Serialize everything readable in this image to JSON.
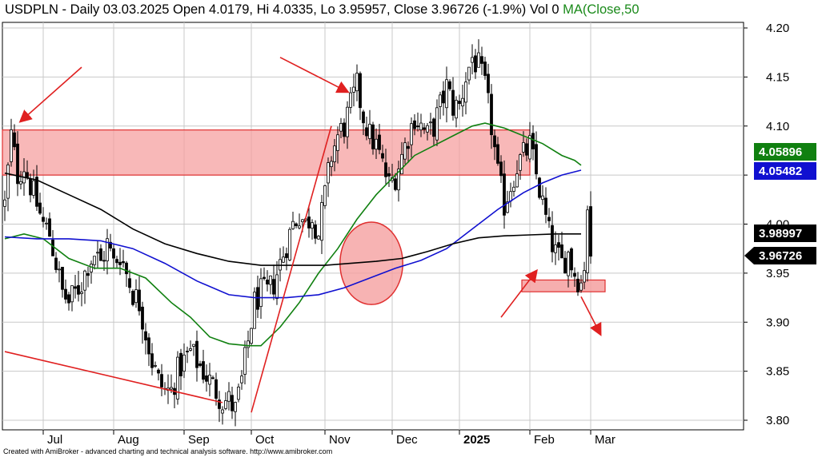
{
  "header": {
    "title": "USDPLN - Daily 03.03.2025 Open 4.0179, Hi 4.0335, Lo 3.95957, Close 3.96726 (-1.9%) Vol 0",
    "ma_label": "MA(Close,50"
  },
  "footer": "Created with AmiBroker - advanced charting and technical analysis software. http://www.amibroker.com",
  "colors": {
    "candle": "#000000",
    "ma_black": "#000000",
    "ma_blue": "#1010d0",
    "ma_green": "#108010",
    "zone_fill": "#f5a0a0",
    "zone_stroke": "#e03030",
    "arrow": "#e02020",
    "grid": "#c8c8c8"
  },
  "chart_data": {
    "type": "candlestick",
    "ylim": [
      3.78,
      4.22
    ],
    "yticks": [
      {
        "value": 3.8,
        "label": "3.80"
      },
      {
        "value": 3.85,
        "label": "3.85"
      },
      {
        "value": 3.9,
        "label": "3.90"
      },
      {
        "value": 3.95,
        "label": "3.95"
      },
      {
        "value": 4.0,
        "label": "4.00"
      },
      {
        "value": 4.05,
        "label": "4.05"
      },
      {
        "value": 4.1,
        "label": "4.10"
      },
      {
        "value": 4.15,
        "label": "4.15"
      },
      {
        "value": 4.2,
        "label": "4.20"
      }
    ],
    "xticks": [
      {
        "label": "Jul",
        "idx": 12,
        "bold": false
      },
      {
        "label": "Aug",
        "idx": 34,
        "bold": false
      },
      {
        "label": "Sep",
        "idx": 56,
        "bold": false
      },
      {
        "label": "Oct",
        "idx": 77,
        "bold": false
      },
      {
        "label": "Nov",
        "idx": 100,
        "bold": false
      },
      {
        "label": "Dec",
        "idx": 121,
        "bold": false
      },
      {
        "label": "2025",
        "idx": 142,
        "bold": true
      },
      {
        "label": "Feb",
        "idx": 164,
        "bold": false
      },
      {
        "label": "Mar",
        "idx": 183,
        "bold": false
      }
    ],
    "n_bars": 184,
    "anchors": [
      [
        0,
        4.02
      ],
      [
        2,
        4.09
      ],
      [
        4,
        4.05
      ],
      [
        6,
        4.06
      ],
      [
        8,
        4.04
      ],
      [
        10,
        4.02
      ],
      [
        12,
        4.0
      ],
      [
        14,
        3.99
      ],
      [
        16,
        3.96
      ],
      [
        18,
        3.93
      ],
      [
        20,
        3.92
      ],
      [
        22,
        3.93
      ],
      [
        24,
        3.94
      ],
      [
        26,
        3.96
      ],
      [
        28,
        3.97
      ],
      [
        30,
        3.96
      ],
      [
        32,
        3.98
      ],
      [
        34,
        3.96
      ],
      [
        36,
        3.97
      ],
      [
        38,
        3.95
      ],
      [
        40,
        3.93
      ],
      [
        42,
        3.92
      ],
      [
        44,
        3.89
      ],
      [
        46,
        3.86
      ],
      [
        48,
        3.84
      ],
      [
        50,
        3.83
      ],
      [
        52,
        3.83
      ],
      [
        54,
        3.85
      ],
      [
        56,
        3.86
      ],
      [
        58,
        3.87
      ],
      [
        60,
        3.86
      ],
      [
        62,
        3.85
      ],
      [
        64,
        3.84
      ],
      [
        66,
        3.83
      ],
      [
        68,
        3.82
      ],
      [
        70,
        3.82
      ],
      [
        72,
        3.81
      ],
      [
        74,
        3.84
      ],
      [
        76,
        3.88
      ],
      [
        78,
        3.92
      ],
      [
        80,
        3.93
      ],
      [
        82,
        3.93
      ],
      [
        84,
        3.94
      ],
      [
        86,
        3.96
      ],
      [
        88,
        3.98
      ],
      [
        90,
        4.0
      ],
      [
        92,
        4.01
      ],
      [
        94,
        4.0
      ],
      [
        96,
        4.01
      ],
      [
        98,
        3.99
      ],
      [
        100,
        4.03
      ],
      [
        102,
        4.07
      ],
      [
        104,
        4.09
      ],
      [
        106,
        4.1
      ],
      [
        108,
        4.12
      ],
      [
        110,
        4.14
      ],
      [
        112,
        4.11
      ],
      [
        114,
        4.09
      ],
      [
        116,
        4.08
      ],
      [
        118,
        4.06
      ],
      [
        120,
        4.04
      ],
      [
        122,
        4.05
      ],
      [
        124,
        4.07
      ],
      [
        126,
        4.09
      ],
      [
        128,
        4.11
      ],
      [
        130,
        4.1
      ],
      [
        132,
        4.09
      ],
      [
        134,
        4.1
      ],
      [
        136,
        4.12
      ],
      [
        138,
        4.14
      ],
      [
        140,
        4.12
      ],
      [
        142,
        4.12
      ],
      [
        144,
        4.15
      ],
      [
        146,
        4.17
      ],
      [
        148,
        4.16
      ],
      [
        150,
        4.14
      ],
      [
        152,
        4.1
      ],
      [
        154,
        4.05
      ],
      [
        156,
        4.02
      ],
      [
        158,
        4.04
      ],
      [
        160,
        4.06
      ],
      [
        162,
        4.07
      ],
      [
        164,
        4.08
      ],
      [
        166,
        4.05
      ],
      [
        168,
        4.02
      ],
      [
        170,
        3.99
      ],
      [
        172,
        3.97
      ],
      [
        174,
        3.96
      ],
      [
        176,
        3.97
      ],
      [
        178,
        3.95
      ],
      [
        180,
        3.94
      ],
      [
        181,
        3.96
      ],
      [
        182,
        4.02
      ],
      [
        183,
        3.967
      ]
    ],
    "last_bar": {
      "open": 4.0179,
      "high": 4.0335,
      "low": 3.95957,
      "close": 3.96726
    },
    "ma_series": [
      {
        "color_key": "ma_green",
        "points": [
          [
            0,
            3.985
          ],
          [
            6,
            3.99
          ],
          [
            12,
            3.985
          ],
          [
            20,
            3.965
          ],
          [
            28,
            3.955
          ],
          [
            36,
            3.955
          ],
          [
            44,
            3.945
          ],
          [
            52,
            3.92
          ],
          [
            58,
            3.905
          ],
          [
            64,
            3.885
          ],
          [
            70,
            3.878
          ],
          [
            76,
            3.876
          ],
          [
            80,
            3.876
          ],
          [
            86,
            3.895
          ],
          [
            92,
            3.92
          ],
          [
            98,
            3.95
          ],
          [
            104,
            3.975
          ],
          [
            110,
            4.005
          ],
          [
            116,
            4.03
          ],
          [
            122,
            4.05
          ],
          [
            128,
            4.07
          ],
          [
            134,
            4.08
          ],
          [
            140,
            4.09
          ],
          [
            146,
            4.1
          ],
          [
            150,
            4.103
          ],
          [
            156,
            4.098
          ],
          [
            162,
            4.09
          ],
          [
            168,
            4.082
          ],
          [
            174,
            4.07
          ],
          [
            178,
            4.065
          ],
          [
            180,
            4.06
          ]
        ]
      },
      {
        "color_key": "ma_blue",
        "points": [
          [
            0,
            3.987
          ],
          [
            10,
            3.985
          ],
          [
            20,
            3.985
          ],
          [
            30,
            3.983
          ],
          [
            40,
            3.975
          ],
          [
            50,
            3.96
          ],
          [
            60,
            3.942
          ],
          [
            70,
            3.928
          ],
          [
            78,
            3.925
          ],
          [
            88,
            3.925
          ],
          [
            98,
            3.928
          ],
          [
            106,
            3.935
          ],
          [
            114,
            3.945
          ],
          [
            122,
            3.955
          ],
          [
            130,
            3.963
          ],
          [
            138,
            3.975
          ],
          [
            146,
            3.995
          ],
          [
            154,
            4.015
          ],
          [
            162,
            4.032
          ],
          [
            168,
            4.042
          ],
          [
            174,
            4.05
          ],
          [
            180,
            4.055
          ]
        ]
      },
      {
        "color_key": "ma_black",
        "points": [
          [
            0,
            4.052
          ],
          [
            10,
            4.045
          ],
          [
            20,
            4.03
          ],
          [
            30,
            4.015
          ],
          [
            40,
            3.995
          ],
          [
            50,
            3.98
          ],
          [
            60,
            3.97
          ],
          [
            70,
            3.962
          ],
          [
            80,
            3.958
          ],
          [
            90,
            3.958
          ],
          [
            100,
            3.958
          ],
          [
            108,
            3.96
          ],
          [
            116,
            3.962
          ],
          [
            124,
            3.965
          ],
          [
            132,
            3.972
          ],
          [
            140,
            3.98
          ],
          [
            148,
            3.986
          ],
          [
            156,
            3.988
          ],
          [
            164,
            3.989
          ],
          [
            172,
            3.99
          ],
          [
            178,
            3.99
          ],
          [
            180,
            3.99
          ]
        ]
      }
    ],
    "resistance_zone": {
      "idx_start": 0,
      "idx_end": 164,
      "y_low": 4.05,
      "y_high": 4.096
    },
    "support_zone": {
      "idx_start": 160,
      "idx_end": 176,
      "y_low": 3.931,
      "y_high": 3.943
    },
    "circle": {
      "idx_center": 107,
      "y_center": 3.96,
      "idx_radius": 14,
      "y_radius": 0.042
    },
    "arrows": [
      {
        "from": [
          24,
          4.16
        ],
        "to": [
          5,
          4.105
        ]
      },
      {
        "from": [
          86,
          4.17
        ],
        "to": [
          107,
          4.135
        ]
      },
      {
        "from": [
          155,
          3.905
        ],
        "to": [
          166,
          3.952
        ]
      },
      {
        "from": [
          180,
          3.926
        ],
        "to": [
          186,
          3.888
        ]
      },
      {
        "from": [
          0,
          3.87
        ],
        "to": [
          68,
          3.818
        ]
      },
      {
        "from": [
          77,
          3.808
        ],
        "to": [
          102,
          4.1
        ]
      }
    ],
    "price_badges": [
      {
        "label": "4.05896",
        "value": 4.05896,
        "bg": "#108010",
        "fg": "#ffffff"
      },
      {
        "label": "4.05482",
        "value": 4.05482,
        "bg": "#1010d0",
        "fg": "#ffffff"
      },
      {
        "label": "3.98997",
        "value": 3.98997,
        "bg": "#000000",
        "fg": "#ffffff"
      },
      {
        "label": "3.96726",
        "value": 3.96726,
        "bg": "#000000",
        "fg": "#ffffff",
        "pointer": true
      }
    ]
  }
}
